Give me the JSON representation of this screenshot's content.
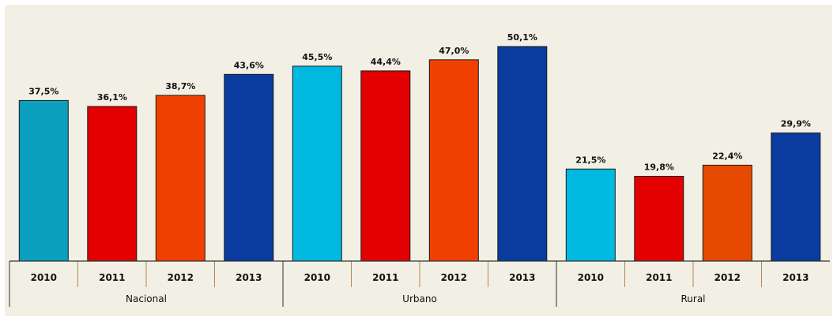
{
  "chart_data": {
    "type": "bar",
    "groups": [
      {
        "name": "Nacional",
        "bars": [
          {
            "year": "2010",
            "value": 37.5,
            "label": "37,5%",
            "color": "#0ba0bf"
          },
          {
            "year": "2011",
            "value": 36.1,
            "label": "36,1%",
            "color": "#e30000"
          },
          {
            "year": "2012",
            "value": 38.7,
            "label": "38,7%",
            "color": "#f04000"
          },
          {
            "year": "2013",
            "value": 43.6,
            "label": "43,6%",
            "color": "#0a3b9e"
          }
        ]
      },
      {
        "name": "Urbano",
        "bars": [
          {
            "year": "2010",
            "value": 45.5,
            "label": "45,5%",
            "color": "#00b9e0"
          },
          {
            "year": "2011",
            "value": 44.4,
            "label": "44,4%",
            "color": "#e30000"
          },
          {
            "year": "2012",
            "value": 47.0,
            "label": "47,0%",
            "color": "#f04000"
          },
          {
            "year": "2013",
            "value": 50.1,
            "label": "50,1%",
            "color": "#0a3b9e"
          }
        ]
      },
      {
        "name": "Rural",
        "bars": [
          {
            "year": "2010",
            "value": 21.5,
            "label": "21,5%",
            "color": "#00b9e0"
          },
          {
            "year": "2011",
            "value": 19.8,
            "label": "19,8%",
            "color": "#e30000"
          },
          {
            "year": "2012",
            "value": 22.4,
            "label": "22,4%",
            "color": "#e54a00"
          },
          {
            "year": "2013",
            "value": 29.9,
            "label": "29,9%",
            "color": "#0a3b9e"
          }
        ]
      }
    ],
    "ylim": [
      0,
      60
    ],
    "grid": false,
    "legend": "none"
  }
}
